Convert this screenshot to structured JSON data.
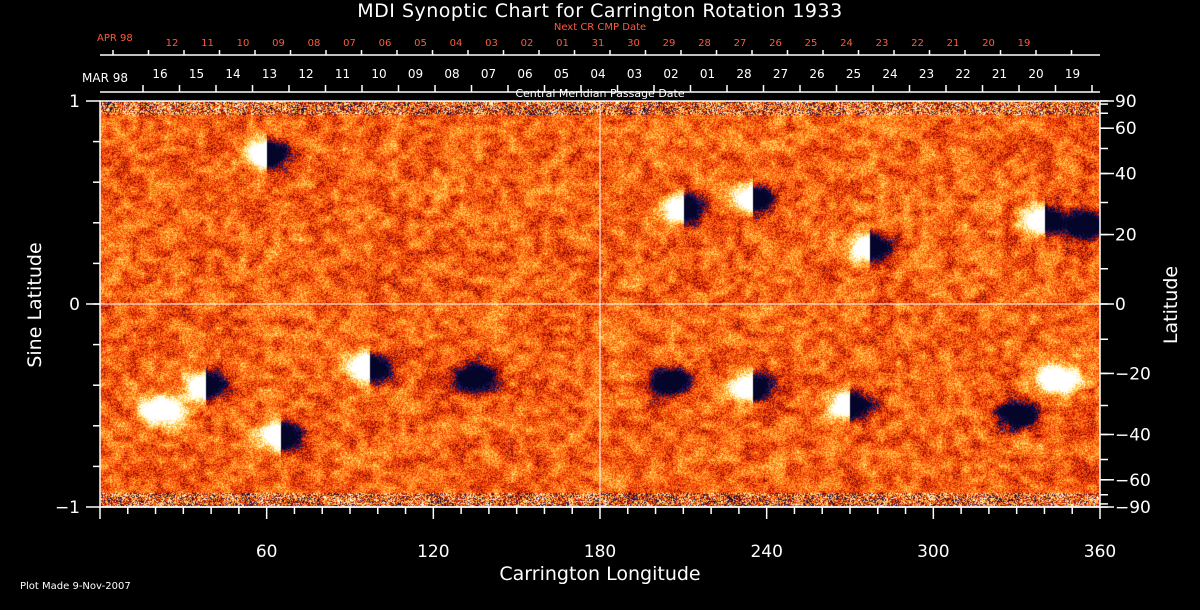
{
  "chart_data": {
    "type": "heatmap",
    "title": "MDI Synoptic Chart for Carrington Rotation 1933",
    "xlabel": "Carrington Longitude",
    "ylabel_left": "Sine Latitude",
    "ylabel_right": "Latitude",
    "xlim": [
      0,
      360
    ],
    "ylim": [
      -1,
      1
    ],
    "x_ticks": [
      60,
      120,
      180,
      240,
      300,
      360
    ],
    "y_ticks_left": [
      {
        "v": 1,
        "label": "1"
      },
      {
        "v": 0,
        "label": "0"
      },
      {
        "v": -1,
        "label": "−1"
      }
    ],
    "y_ticks_right_degrees": [
      {
        "deg": 90,
        "label": "90"
      },
      {
        "deg": 60,
        "label": "60"
      },
      {
        "deg": 40,
        "label": "40"
      },
      {
        "deg": 20,
        "label": "20"
      },
      {
        "deg": 0,
        "label": "0"
      },
      {
        "deg": -20,
        "label": "−20"
      },
      {
        "deg": -40,
        "label": "−40"
      },
      {
        "deg": -60,
        "label": "−60"
      },
      {
        "deg": -90,
        "label": "−90"
      }
    ],
    "grid": "crosshair at longitude 180 and sine latitude 0",
    "top_axis_bottom": {
      "month_label": "MAR 98",
      "caption": "Central Meridian Passage Date",
      "day_labels": [
        "16",
        "15",
        "14",
        "13",
        "12",
        "11",
        "10",
        "09",
        "08",
        "07",
        "06",
        "05",
        "04",
        "03",
        "02",
        "01",
        "28",
        "27",
        "26",
        "25",
        "24",
        "23",
        "22",
        "21",
        "20",
        "19"
      ]
    },
    "top_axis_top": {
      "month_label": "APR 98",
      "caption": "Next CR CMP Date",
      "day_labels": [
        "12",
        "11",
        "10",
        "09",
        "08",
        "07",
        "06",
        "05",
        "04",
        "03",
        "02",
        "01",
        "31",
        "30",
        "29",
        "28",
        "27",
        "26",
        "25",
        "24",
        "23",
        "22",
        "21",
        "20",
        "19"
      ]
    },
    "colormap": [
      "#05052a",
      "#1a1a6e",
      "#8a0a00",
      "#e22a00",
      "#ff5a10",
      "#ff8a20",
      "#ffc040",
      "#ffee99",
      "#ffffff"
    ],
    "active_regions": [
      {
        "lon": 38,
        "sinlat": -0.4,
        "polarity": "bipolar"
      },
      {
        "lon": 22,
        "sinlat": -0.52,
        "polarity": "positive"
      },
      {
        "lon": 65,
        "sinlat": -0.65,
        "polarity": "bipolar"
      },
      {
        "lon": 60,
        "sinlat": 0.74,
        "polarity": "bipolar"
      },
      {
        "lon": 97,
        "sinlat": -0.31,
        "polarity": "bipolar"
      },
      {
        "lon": 135,
        "sinlat": -0.36,
        "polarity": "negative"
      },
      {
        "lon": 210,
        "sinlat": 0.47,
        "polarity": "bipolar"
      },
      {
        "lon": 235,
        "sinlat": 0.52,
        "polarity": "bipolar"
      },
      {
        "lon": 277,
        "sinlat": 0.28,
        "polarity": "bipolar"
      },
      {
        "lon": 340,
        "sinlat": 0.42,
        "polarity": "bipolar"
      },
      {
        "lon": 355,
        "sinlat": 0.39,
        "polarity": "negative"
      },
      {
        "lon": 235,
        "sinlat": -0.41,
        "polarity": "bipolar"
      },
      {
        "lon": 270,
        "sinlat": -0.5,
        "polarity": "bipolar"
      },
      {
        "lon": 205,
        "sinlat": -0.38,
        "polarity": "negative"
      },
      {
        "lon": 330,
        "sinlat": -0.54,
        "polarity": "negative"
      },
      {
        "lon": 345,
        "sinlat": -0.37,
        "polarity": "positive"
      }
    ]
  },
  "footer": {
    "plot_made": "Plot Made  9-Nov-2007"
  }
}
